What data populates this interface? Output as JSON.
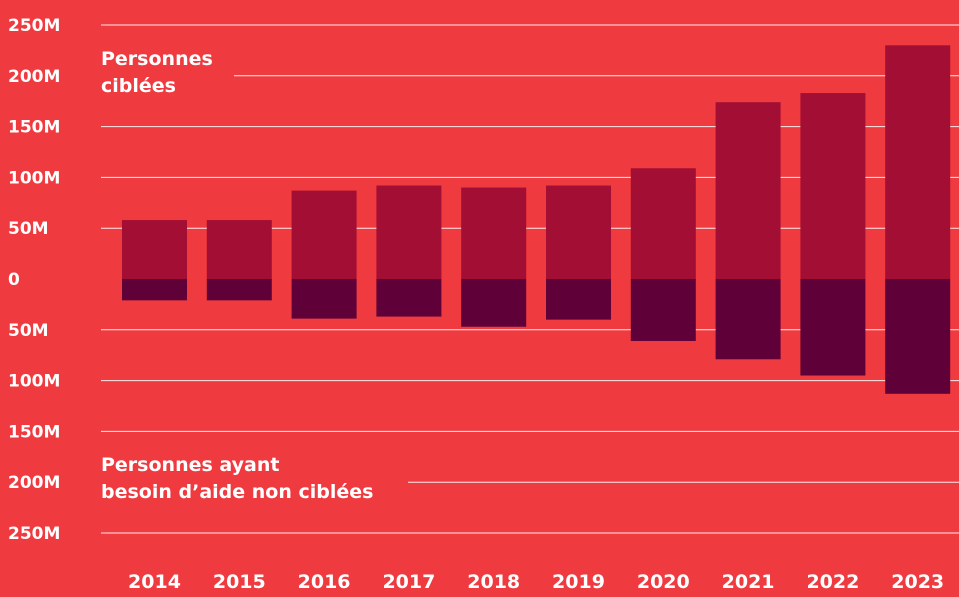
{
  "chart_data": {
    "type": "bar",
    "categories": [
      "2014",
      "2015",
      "2016",
      "2017",
      "2018",
      "2019",
      "2020",
      "2021",
      "2022",
      "2023"
    ],
    "series": [
      {
        "name": "Personnes ciblées",
        "values": [
          58,
          58,
          87,
          92,
          90,
          92,
          109,
          174,
          183,
          230
        ]
      },
      {
        "name": "Personnes ayant besoin d'aide non ciblées",
        "values": [
          -21,
          -21,
          -39,
          -37,
          -47,
          -40,
          -61,
          -79,
          -95,
          -113
        ]
      }
    ],
    "y_ticks": [
      {
        "value": 250,
        "label": "250M"
      },
      {
        "value": 200,
        "label": "200M"
      },
      {
        "value": 150,
        "label": "150M"
      },
      {
        "value": 100,
        "label": "100M"
      },
      {
        "value": 50,
        "label": "50M"
      },
      {
        "value": 0,
        "label": "0"
      },
      {
        "value": -50,
        "label": "50M"
      },
      {
        "value": -100,
        "label": "100M"
      },
      {
        "value": -150,
        "label": "150M"
      },
      {
        "value": -200,
        "label": "200M"
      },
      {
        "value": -250,
        "label": "250M"
      }
    ],
    "ylim": [
      -250,
      250
    ],
    "grid": true,
    "annotations": {
      "top": [
        "Personnes",
        "ciblées"
      ],
      "bottom": [
        "Personnes ayant",
        "besoin d’aide non ciblées"
      ]
    },
    "colors": {
      "background": "#ef3a3f",
      "positive": "#a30e34",
      "negative": "#600039",
      "grid": "#ffffff",
      "text": "#ffffff"
    }
  }
}
